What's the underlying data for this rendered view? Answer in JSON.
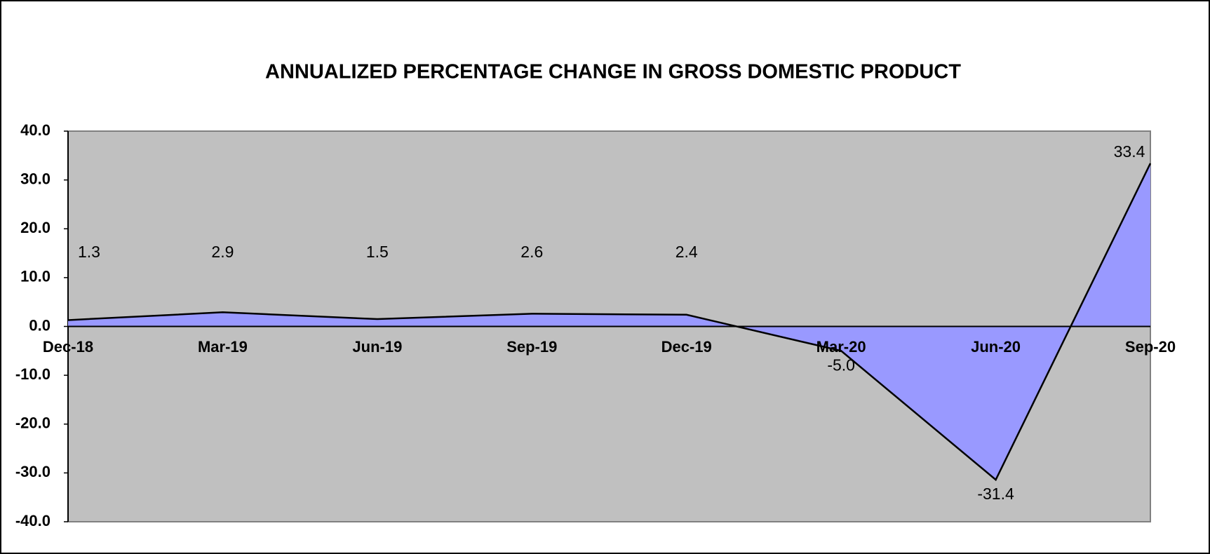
{
  "chart_data": {
    "type": "area",
    "title": "ANNUALIZED PERCENTAGE CHANGE IN GROSS DOMESTIC PRODUCT",
    "categories": [
      "Dec-18",
      "Mar-19",
      "Jun-19",
      "Sep-19",
      "Dec-19",
      "Mar-20",
      "Jun-20",
      "Sep-20"
    ],
    "series": [
      {
        "color": "#9999ff",
        "values": [
          1.3,
          2.9,
          1.5,
          2.6,
          2.4,
          -5,
          -31.4,
          33.4
        ],
        "value_labels": [
          "1.3",
          "2.9",
          "1.5",
          "2.6",
          "2.4",
          "-5.0",
          "-31.4",
          "33.4"
        ]
      }
    ],
    "ylim": [
      -40,
      40
    ],
    "yticks": [
      {
        "value": 40,
        "label": "40.0"
      },
      {
        "value": 30,
        "label": "30.0"
      },
      {
        "value": 20,
        "label": "20.0"
      },
      {
        "value": 10,
        "label": "10.0"
      },
      {
        "value": 0,
        "label": "0.0"
      },
      {
        "value": -10,
        "label": "-10.0"
      },
      {
        "value": -20,
        "label": "-20.0"
      },
      {
        "value": -30,
        "label": "-30.0"
      },
      {
        "value": -40,
        "label": "-40.0"
      }
    ],
    "plot_background": "#c0c0c0"
  }
}
